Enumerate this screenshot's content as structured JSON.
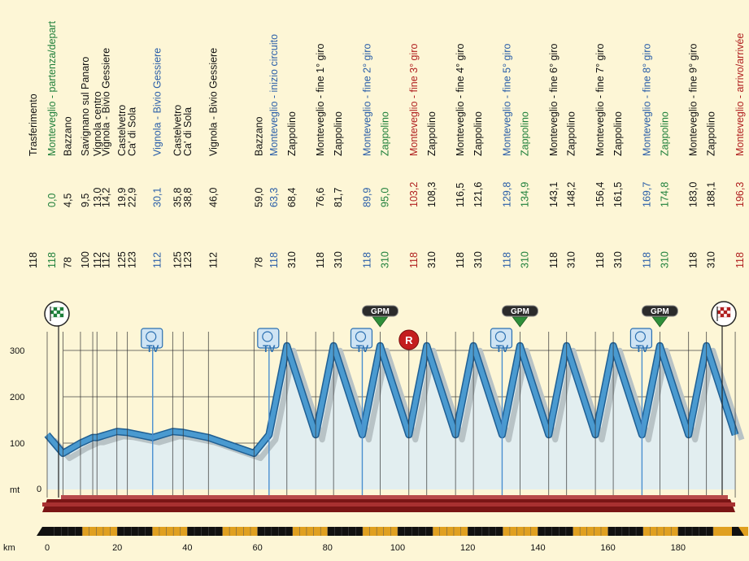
{
  "colors": {
    "black": "#111111",
    "green": "#1d7f3a",
    "blue": "#2a5ea8",
    "red": "#b02020",
    "background": "#fdf6d6",
    "profile_fill": "#e2eef0",
    "profile_ribbon": "#4a9ad0",
    "road_dark": "#7a1515",
    "marker_line": "#4a8fd0"
  },
  "chart_data": {
    "type": "area",
    "xlabel": "km",
    "ylabel": "mt",
    "xlim": [
      0,
      196.3
    ],
    "ylim": [
      0,
      300
    ],
    "x_ticks": [
      0,
      20,
      40,
      60,
      80,
      100,
      120,
      140,
      160,
      180
    ],
    "y_ticks": [
      0,
      100,
      200,
      300
    ],
    "profile": [
      [
        0,
        118
      ],
      [
        4.5,
        78
      ],
      [
        9.5,
        100
      ],
      [
        13,
        112
      ],
      [
        14.2,
        112
      ],
      [
        19.9,
        125
      ],
      [
        22.9,
        123
      ],
      [
        30.1,
        112
      ],
      [
        35.8,
        125
      ],
      [
        38.8,
        123
      ],
      [
        46,
        112
      ],
      [
        59,
        78
      ],
      [
        63.3,
        118
      ],
      [
        68.4,
        310
      ],
      [
        76.6,
        118
      ],
      [
        81.7,
        310
      ],
      [
        89.9,
        118
      ],
      [
        95,
        310
      ],
      [
        103.2,
        118
      ],
      [
        108.3,
        310
      ],
      [
        116.5,
        118
      ],
      [
        121.6,
        310
      ],
      [
        129.8,
        118
      ],
      [
        134.9,
        310
      ],
      [
        143.1,
        118
      ],
      [
        148.2,
        310
      ],
      [
        156.4,
        118
      ],
      [
        161.5,
        310
      ],
      [
        169.7,
        118
      ],
      [
        174.8,
        310
      ],
      [
        183,
        118
      ],
      [
        188.1,
        310
      ],
      [
        196.3,
        118
      ]
    ],
    "points": [
      {
        "alt": "118",
        "km": "",
        "name": "Trasferimento",
        "color": "black"
      },
      {
        "alt": "118",
        "km": "0,0",
        "name": "Monteveglio - partenza/depart",
        "color": "green"
      },
      {
        "alt": "78",
        "km": "4,5",
        "name": "Bazzano",
        "color": "black"
      },
      {
        "alt": "100",
        "km": "9,5",
        "name": "Savignano sul Panaro",
        "color": "black"
      },
      {
        "alt": "112",
        "km": "13,0",
        "name": "Vignola centro",
        "color": "black"
      },
      {
        "alt": "112",
        "km": "14,2",
        "name": "Vignola - Bivio Gessiere",
        "color": "black"
      },
      {
        "alt": "125",
        "km": "19,9",
        "name": "Castelvetro",
        "color": "black"
      },
      {
        "alt": "123",
        "km": "22,9",
        "name": "Ca' di Sola",
        "color": "black"
      },
      {
        "alt": "112",
        "km": "30,1",
        "name": "Vignola - Bivio Gessiere",
        "color": "blue"
      },
      {
        "alt": "125",
        "km": "35,8",
        "name": "Castelvetro",
        "color": "black"
      },
      {
        "alt": "123",
        "km": "38,8",
        "name": "Ca' di Sola",
        "color": "black"
      },
      {
        "alt": "112",
        "km": "46,0",
        "name": "Vignola - Bivio Gessiere",
        "color": "black"
      },
      {
        "alt": "78",
        "km": "59,0",
        "name": "Bazzano",
        "color": "black"
      },
      {
        "alt": "118",
        "km": "63,3",
        "name": "Monteveglio - inizio circuito",
        "color": "blue"
      },
      {
        "alt": "310",
        "km": "68,4",
        "name": "Zappolino",
        "color": "black"
      },
      {
        "alt": "118",
        "km": "76,6",
        "name": "Monteveglio - fine 1° giro",
        "color": "black"
      },
      {
        "alt": "310",
        "km": "81,7",
        "name": "Zappolino",
        "color": "black"
      },
      {
        "alt": "118",
        "km": "89,9",
        "name": "Monteveglio - fine 2° giro",
        "color": "blue"
      },
      {
        "alt": "310",
        "km": "95,0",
        "name": "Zappolino",
        "color": "green"
      },
      {
        "alt": "118",
        "km": "103,2",
        "name": "Monteveglio - fine 3° giro",
        "color": "red"
      },
      {
        "alt": "310",
        "km": "108,3",
        "name": "Zappolino",
        "color": "black"
      },
      {
        "alt": "118",
        "km": "116,5",
        "name": "Monteveglio - fine 4° giro",
        "color": "black"
      },
      {
        "alt": "310",
        "km": "121,6",
        "name": "Zappolino",
        "color": "black"
      },
      {
        "alt": "118",
        "km": "129,8",
        "name": "Monteveglio - fine 5° giro",
        "color": "blue"
      },
      {
        "alt": "310",
        "km": "134,9",
        "name": "Zappolino",
        "color": "green"
      },
      {
        "alt": "118",
        "km": "143,1",
        "name": "Monteveglio - fine 6° giro",
        "color": "black"
      },
      {
        "alt": "310",
        "km": "148,2",
        "name": "Zappolino",
        "color": "black"
      },
      {
        "alt": "118",
        "km": "156,4",
        "name": "Monteveglio - fine 7° giro",
        "color": "black"
      },
      {
        "alt": "310",
        "km": "161,5",
        "name": "Zappolino",
        "color": "black"
      },
      {
        "alt": "118",
        "km": "169,7",
        "name": "Monteveglio - fine 8° giro",
        "color": "blue"
      },
      {
        "alt": "310",
        "km": "174,8",
        "name": "Zappolino",
        "color": "green"
      },
      {
        "alt": "118",
        "km": "183,0",
        "name": "Monteveglio - fine 9° giro",
        "color": "black"
      },
      {
        "alt": "310",
        "km": "188,1",
        "name": "Zappolino",
        "color": "black"
      },
      {
        "alt": "118",
        "km": "196,3",
        "name": "Monteveglio - arrivo/arrivée",
        "color": "red"
      }
    ],
    "tv_km": [
      30.1,
      63.3,
      89.9,
      129.8,
      169.7
    ],
    "gpm_km": [
      95.0,
      134.9,
      174.8
    ],
    "gpm_label": "GPM",
    "tv_label": "TV",
    "sprint_km": 103.2,
    "sprint_label": "R"
  }
}
